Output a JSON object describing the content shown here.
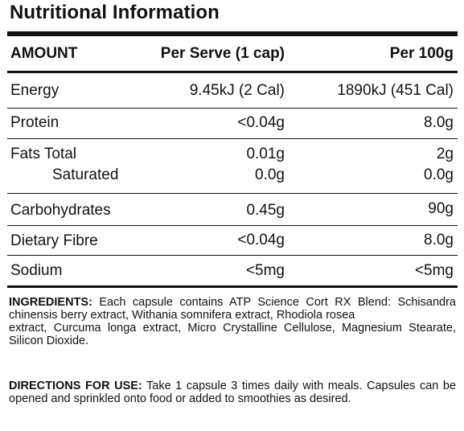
{
  "title": "Nutritional Information",
  "table": {
    "headers": {
      "amount": "AMOUNT",
      "per_serve": "Per Serve (1 cap)",
      "per_100g": "Per 100g"
    },
    "rows": [
      {
        "name": "Energy",
        "per_serve": "9.45kJ (2 Cal)",
        "per_100g": "1890kJ (451 Cal)"
      },
      {
        "name": "Protein",
        "per_serve": "<0.04g",
        "per_100g": "8.0g"
      },
      {
        "name": "Fats Total",
        "per_serve": "0.01g",
        "per_100g": "2g"
      },
      {
        "name": "Saturated",
        "per_serve": "0.0g",
        "per_100g": "0.0g"
      },
      {
        "name": "Carbohydrates",
        "per_serve": "0.45g",
        "per_100g": "90g"
      },
      {
        "name": "Dietary Fibre",
        "per_serve": "<0.04g",
        "per_100g": "8.0g"
      },
      {
        "name": "Sodium",
        "per_serve": "<5mg",
        "per_100g": "<5mg"
      }
    ]
  },
  "ingredients": {
    "label": "INGREDIENTS:",
    "text_line1": " Each capsule contains ATP Science Cort RX Blend: Schisandra chinensis berry extract, Withania somnifera extract, Rhodiola rosea",
    "text_line2": "extract, Curcuma longa extract, Micro Crystalline Cellulose, Magnesium Stearate, Silicon Dioxide."
  },
  "directions": {
    "label": "DIRECTIONS FOR USE:",
    "text": " Take 1 capsule 3 times daily with meals. Capsules can be opened and sprinkled onto food or added to smoothies as desired."
  }
}
